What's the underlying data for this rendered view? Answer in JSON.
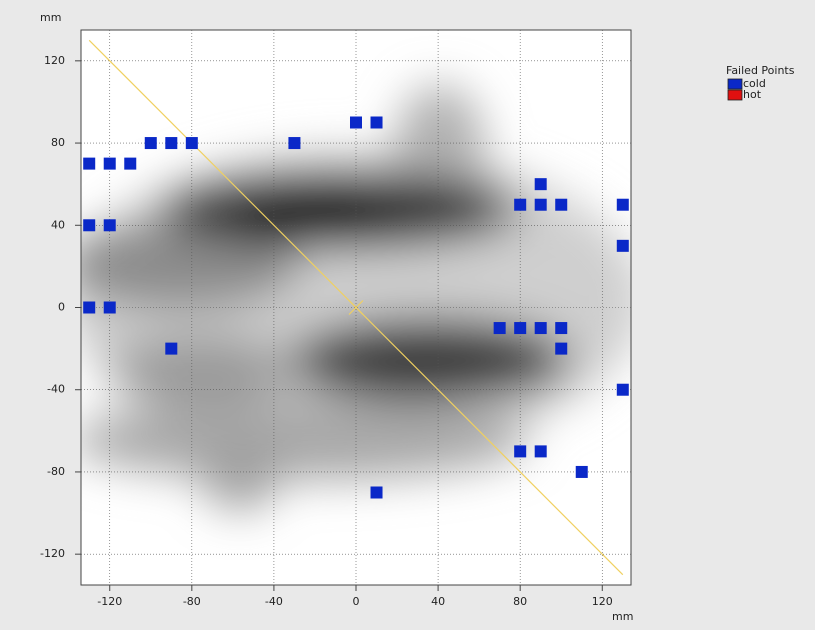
{
  "chart_data": {
    "type": "scatter",
    "xlabel": "mm",
    "ylabel": "mm",
    "xlim": [
      -134,
      134
    ],
    "ylim": [
      -135,
      135
    ],
    "xticks": [
      -120,
      -80,
      -40,
      0,
      40,
      80,
      120
    ],
    "yticks": [
      -120,
      -80,
      -40,
      0,
      40,
      80,
      120
    ],
    "grid": true,
    "legend_title": "Failed Points",
    "legend_position": "outside-right",
    "reference_line": {
      "color": "#f0d060",
      "x": [
        -130,
        130
      ],
      "y": [
        130,
        -130
      ]
    },
    "series": [
      {
        "name": "cold",
        "color": "#0a28c8",
        "x": [
          -130,
          -120,
          -110,
          -100,
          -90,
          -80,
          -30,
          0,
          10,
          -130,
          -120,
          -130,
          -120,
          -90,
          90,
          80,
          90,
          100,
          130,
          130,
          70,
          80,
          90,
          100,
          100,
          130,
          80,
          90,
          110,
          10
        ],
        "y": [
          70,
          70,
          70,
          80,
          80,
          80,
          80,
          90,
          90,
          40,
          40,
          0,
          0,
          -20,
          60,
          50,
          50,
          50,
          50,
          30,
          -10,
          -10,
          -10,
          -10,
          -20,
          -40,
          -70,
          -70,
          -80,
          -90
        ]
      },
      {
        "name": "hot",
        "color": "#e01010",
        "x": [],
        "y": []
      }
    ]
  }
}
